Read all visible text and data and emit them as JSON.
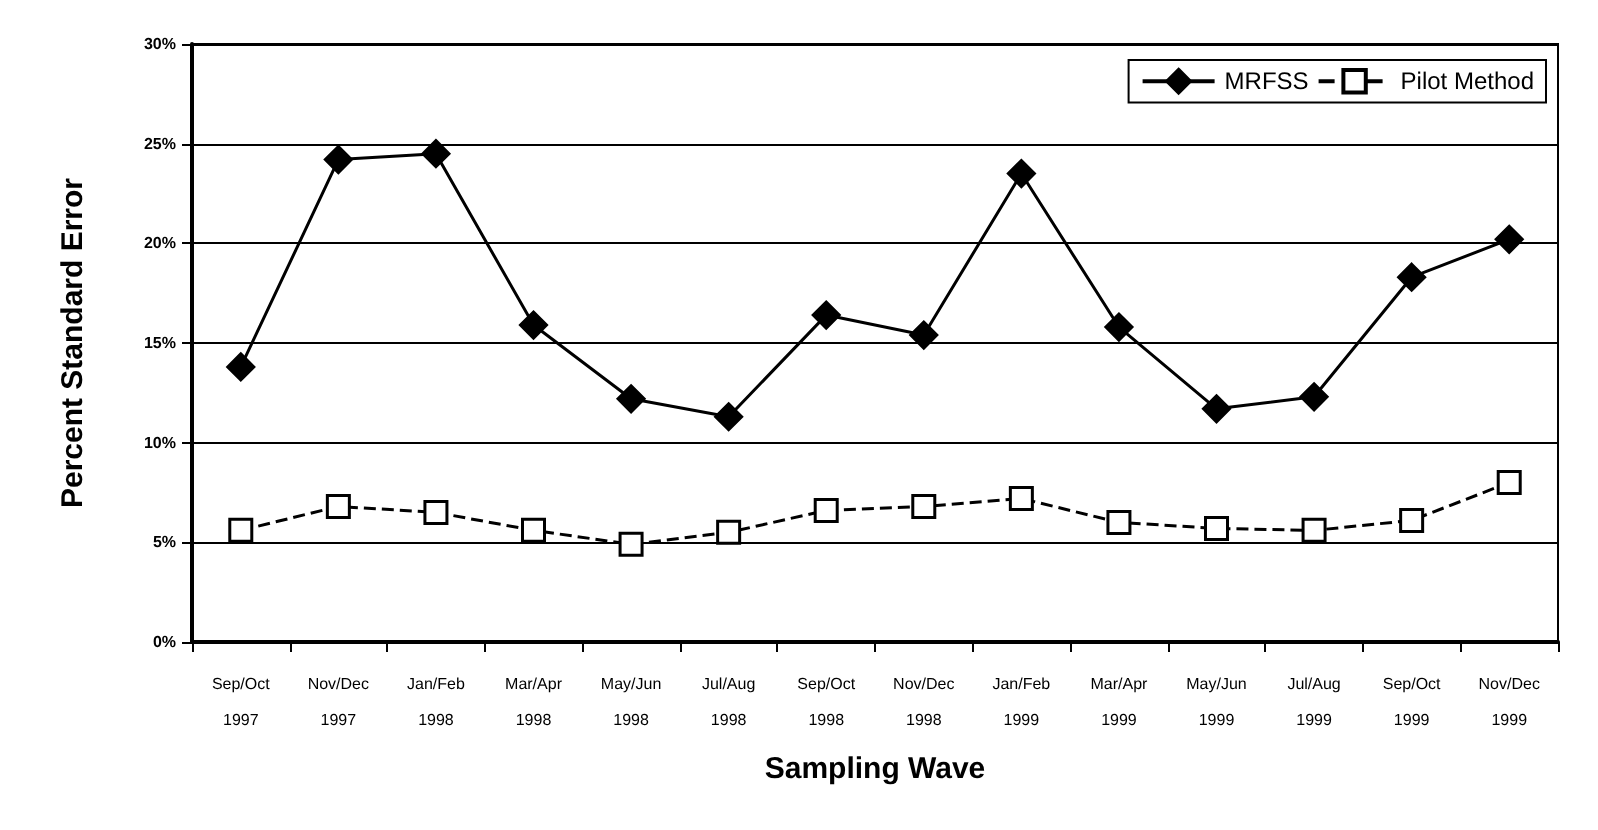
{
  "chart_data": {
    "type": "line",
    "xlabel": "Sampling Wave",
    "ylabel": "Percent Standard Error",
    "categories": [
      "Sep/Oct\n1997",
      "Nov/Dec\n1997",
      "Jan/Feb\n1998",
      "Mar/Apr\n1998",
      "May/Jun\n1998",
      "Jul/Aug\n1998",
      "Sep/Oct\n1998",
      "Nov/Dec\n1998",
      "Jan/Feb\n1999",
      "Mar/Apr\n1999",
      "May/Jun\n1999",
      "Jul/Aug\n1999",
      "Sep/Oct\n1999",
      "Nov/Dec\n1999"
    ],
    "series": [
      {
        "name": "MRFSS",
        "color": "#000000",
        "marker": "diamond",
        "line_style": "solid",
        "values": [
          13.8,
          24.2,
          24.5,
          15.9,
          12.2,
          11.3,
          16.4,
          15.4,
          23.5,
          15.8,
          11.7,
          12.3,
          18.3,
          20.2
        ]
      },
      {
        "name": "Pilot Method",
        "color": "#000000",
        "marker": "square",
        "line_style": "dashed",
        "values": [
          5.6,
          6.8,
          6.5,
          5.6,
          4.9,
          5.5,
          6.6,
          6.8,
          7.2,
          6.0,
          5.7,
          5.6,
          6.1,
          8.0
        ]
      }
    ],
    "ylim": [
      0,
      30
    ],
    "yticks": [
      {
        "value": 0,
        "label": "0%"
      },
      {
        "value": 5,
        "label": "5%"
      },
      {
        "value": 10,
        "label": "10%"
      },
      {
        "value": 15,
        "label": "15%"
      },
      {
        "value": 20,
        "label": "20%"
      },
      {
        "value": 25,
        "label": "25%"
      },
      {
        "value": 30,
        "label": "30%"
      }
    ],
    "grid": "y",
    "legend": "top right"
  }
}
